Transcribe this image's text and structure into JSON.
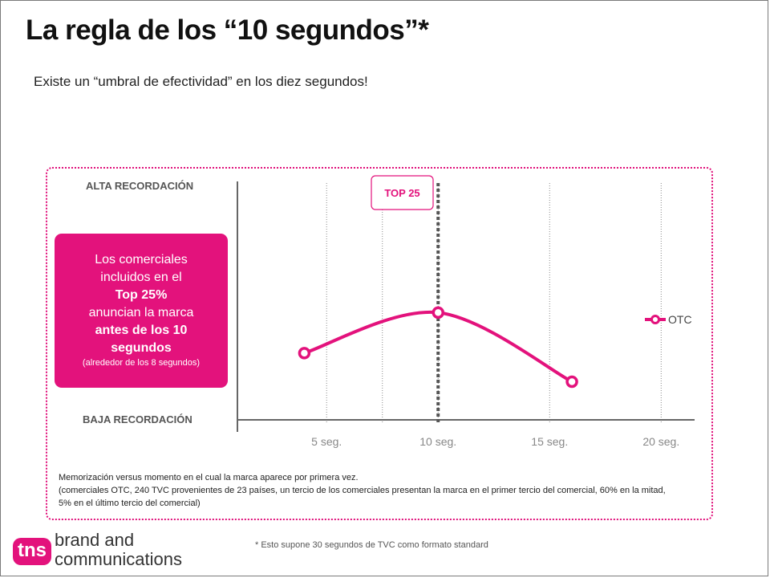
{
  "title": "La regla de los “10 segundos”*",
  "subtitle": "Existe un “umbral de efectividad” en los diez segundos!",
  "chart_data": {
    "type": "line",
    "x_tick_labels": [
      "5 seg.",
      "10 seg.",
      "15 seg.",
      "20 seg."
    ],
    "x_ticks": [
      5,
      10,
      15,
      20
    ],
    "xlim": [
      1,
      21.5
    ],
    "y_top_label": "ALTA RECORDACIÓN",
    "y_bottom_label": "BAJA RECORDACIÓN",
    "ylim": [
      0,
      100
    ],
    "series": [
      {
        "name": "OTC",
        "color": "#e3127c",
        "x": [
          4,
          10,
          16
        ],
        "y": [
          28,
          45,
          16
        ]
      }
    ],
    "threshold": {
      "x": 10,
      "label": "TOP 25"
    },
    "minor_lines_x": [
      7.5
    ],
    "legend_position": "right"
  },
  "callout": {
    "line1": "Los comerciales",
    "line2": "incluidos en el",
    "line3": "Top 25%",
    "line4": "anuncian la marca",
    "line5": "antes de los 10",
    "line6": "segundos",
    "line7": "(alrededor de los 8 segundos)"
  },
  "note": {
    "line1": "Memorización versus momento en el cual la marca aparece por primera vez.",
    "line2": "(comerciales OTC,  240 TVC  provenientes de 23 países, un tercio de los comerciales presentan la marca en el primer tercio del comercial, 60% en la mitad, 5% en el último tercio del comercial)"
  },
  "footnote": "* Esto supone 30 segundos de TVC como formato standard",
  "logo": {
    "mark": "tns",
    "line1": "brand and",
    "line2": "communications",
    "color": "#e3127c"
  }
}
